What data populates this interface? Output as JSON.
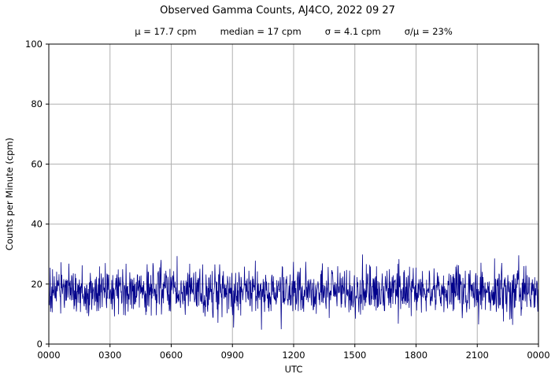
{
  "chart_data": {
    "type": "line",
    "title": "Observed Gamma Counts, AJ4CO, 2022 09 27",
    "subtitle_parts": [
      "μ = 17.7 cpm",
      "median = 17 cpm",
      "σ = 4.1 cpm",
      "σ/μ = 23%"
    ],
    "stats": {
      "mean_cpm": 17.7,
      "median_cpm": 17,
      "sigma_cpm": 4.1,
      "sigma_over_mu_percent": 23
    },
    "xlabel": "UTC",
    "ylabel": "Counts per Minute (cpm)",
    "x_tick_labels": [
      "0000",
      "0300",
      "0600",
      "0900",
      "1200",
      "1500",
      "1800",
      "2100",
      "0000"
    ],
    "x_range_minutes": [
      0,
      1440
    ],
    "y_ticks": [
      0,
      20,
      40,
      60,
      80,
      100
    ],
    "ylim": [
      0,
      100
    ],
    "grid": true,
    "legend": "none",
    "n_points": 1440,
    "observed_min_cpm": 4,
    "observed_max_cpm": 33,
    "colors": {
      "line": "#00008b",
      "grid": "#b0b0b0",
      "axis": "#000000",
      "background": "#ffffff"
    }
  }
}
